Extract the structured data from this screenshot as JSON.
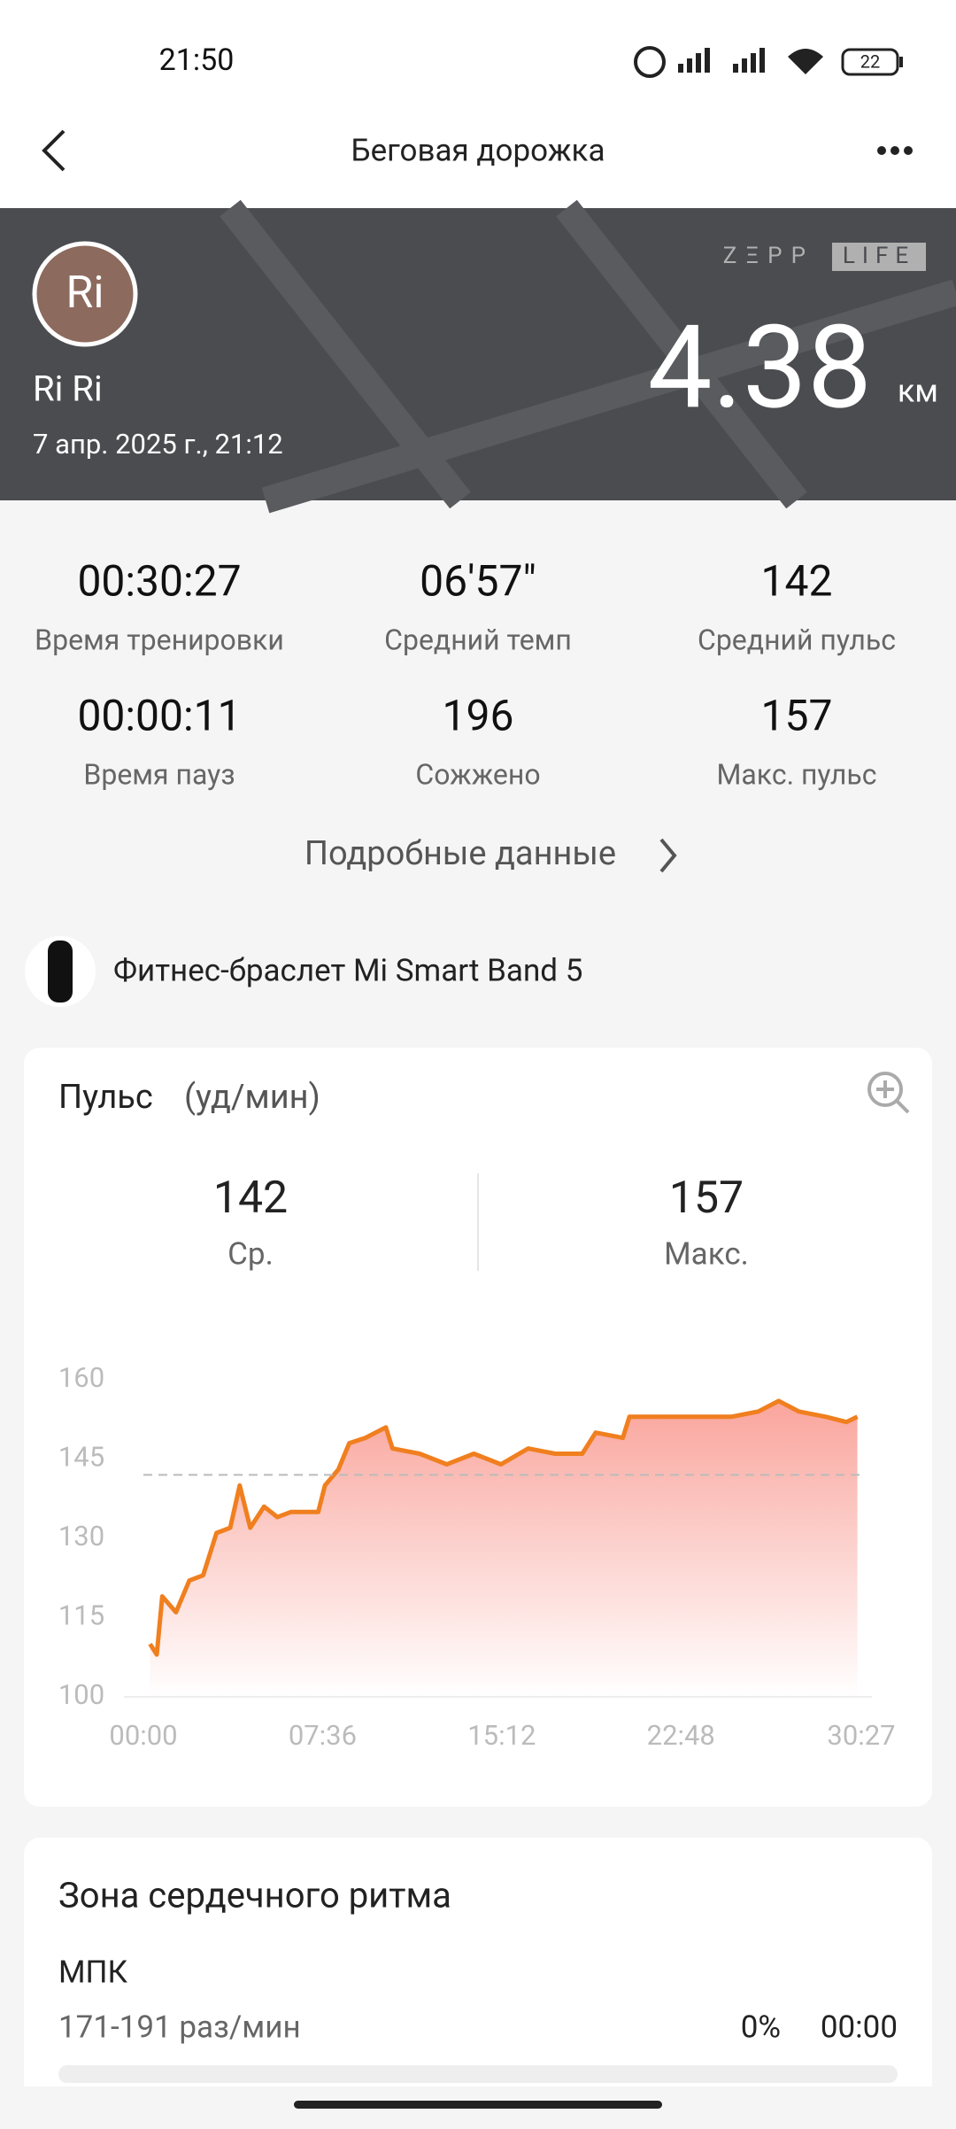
{
  "status_bar": {
    "time": "21:50",
    "battery": "22"
  },
  "header": {
    "title": "Беговая дорожка"
  },
  "hero": {
    "avatar": "Ri",
    "name": "Ri Ri",
    "date": "7 апр. 2025 г., 21:12",
    "brand_left": "ZΞPP",
    "brand_right": "LIFE",
    "distance": "4.38",
    "unit": "км"
  },
  "stats": [
    {
      "value": "00:30:27",
      "label": "Время тренировки"
    },
    {
      "value": "06'57\"",
      "label": "Средний темп"
    },
    {
      "value": "142",
      "label": "Средний пульс"
    },
    {
      "value": "00:00:11",
      "label": "Время пауз"
    },
    {
      "value": "196",
      "label": "Сожжено"
    },
    {
      "value": "157",
      "label": "Макс. пульс"
    }
  ],
  "details_link": "Подробные данные",
  "device": "Фитнес-браслет Mi Smart Band 5",
  "pulse_card": {
    "title": "Пульс",
    "unit": "(уд/мин)",
    "avg_value": "142",
    "avg_label": "Ср.",
    "max_value": "157",
    "max_label": "Макс."
  },
  "chart_data": {
    "type": "line",
    "x": [
      17,
      34,
      48,
      83,
      117,
      152,
      186,
      221,
      245,
      272,
      307,
      341,
      376,
      445,
      462,
      496,
      524,
      565,
      617,
      634,
      703,
      772,
      841,
      910,
      979,
      1048,
      1117,
      1151,
      1220,
      1237,
      1324,
      1427,
      1496,
      1565,
      1617,
      1668,
      1737,
      1789,
      1817
    ],
    "series": [
      {
        "color": "#f07f1f",
        "values": [
          110,
          108,
          119,
          116,
          122,
          123,
          131,
          132,
          140,
          132,
          136,
          134,
          135,
          135,
          140,
          143,
          148,
          149,
          151,
          147,
          146,
          144,
          146,
          144,
          147,
          146,
          146,
          150,
          149,
          153,
          153,
          153,
          153,
          154,
          156,
          154,
          153,
          152,
          153
        ]
      }
    ],
    "area_color": "#f8877c",
    "reference_line": 142,
    "xlim": [
      0,
      1827
    ],
    "xticks": [
      {
        "value": 0,
        "label": "00:00"
      },
      {
        "value": 456,
        "label": "07:36"
      },
      {
        "value": 912,
        "label": "15:12"
      },
      {
        "value": 1368,
        "label": "22:48"
      },
      {
        "value": 1827,
        "label": "30:27"
      }
    ],
    "ylim": [
      100,
      160
    ],
    "yticks": [
      100,
      115,
      130,
      145,
      160
    ],
    "grid": false
  },
  "zone_card": {
    "title": "Зона сердечного ритма",
    "zone_name": "МПК",
    "range": "171-191 раз/мин",
    "percent": "0%",
    "time": "00:00"
  }
}
